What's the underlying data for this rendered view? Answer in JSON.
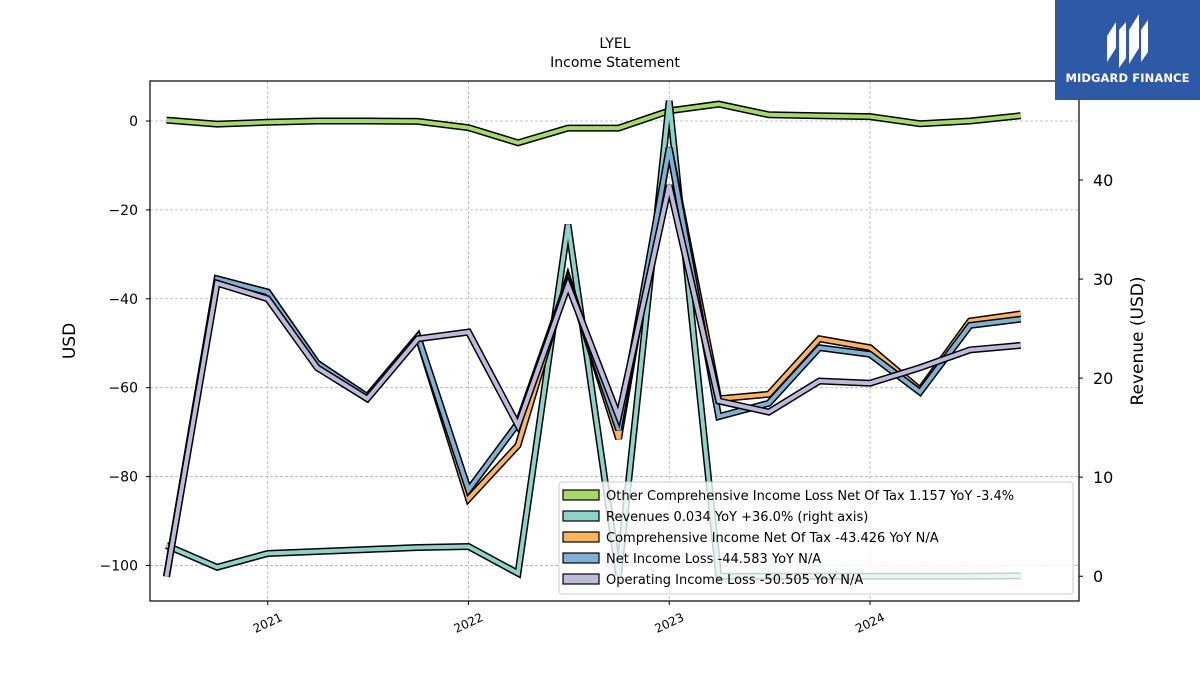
{
  "brand": {
    "name": "MIDGARD FINANCE"
  },
  "chart_data": {
    "type": "line",
    "title": "LYEL",
    "subtitle": "Income Statement",
    "ylabel": "USD",
    "ylabel_right": "Revenue (USD)",
    "x": [
      "2020-07-01",
      "2020-10-01",
      "2021-01-01",
      "2021-04-01",
      "2021-07-01",
      "2021-10-01",
      "2022-01-01",
      "2022-04-01",
      "2022-07-01",
      "2022-10-01",
      "2023-01-01",
      "2023-04-01",
      "2023-07-01",
      "2023-10-01",
      "2024-01-01",
      "2024-04-01",
      "2024-07-01",
      "2024-10-01"
    ],
    "x_ticks": [
      "2021",
      "2022",
      "2023",
      "2024"
    ],
    "ylim": [
      -108,
      9
    ],
    "y_ticks": [
      0,
      -20,
      -40,
      -60,
      -80,
      -100
    ],
    "ylim_right": [
      -2.5,
      50
    ],
    "y_ticks_right": [
      0,
      10,
      20,
      30,
      40
    ],
    "grid": true,
    "legend_position": "lower-right",
    "series": [
      {
        "name": "Other Comprehensive Income Loss Net Of Tax",
        "legend": "Other Comprehensive Income Loss Net Of Tax  1.157 YoY -3.4%",
        "color": "#a6d96a",
        "axis": "left",
        "values": [
          0.2,
          -0.7,
          -0.3,
          0,
          0,
          -0.1,
          -1.5,
          -4.9,
          -1.6,
          -1.6,
          2.3,
          3.8,
          1.4,
          1.2,
          1.0,
          -0.6,
          0,
          1.2
        ]
      },
      {
        "name": "Revenues",
        "legend": "Revenues  0.034 YoY +36.0% (right axis)",
        "color": "#8dd3c7",
        "axis": "right",
        "values": [
          3.1,
          0.9,
          2.3,
          2.5,
          2.7,
          2.9,
          3.0,
          0.3,
          35.5,
          0.1,
          48.0,
          0.0,
          0.0,
          0.0,
          0.0,
          0.0,
          0.0,
          0.034
        ]
      },
      {
        "name": "Comprehensive Income Net Of Tax",
        "legend": "Comprehensive Income Net Of Tax  -43.426 YoY N/A",
        "color": "#fdb462",
        "axis": "left",
        "values": [
          -102.5,
          -35.5,
          -38.5,
          -54.5,
          -62.0,
          -48.5,
          -85.0,
          -73.0,
          -35.5,
          -71.5,
          -6.0,
          -62.5,
          -61.5,
          -49.0,
          -51.0,
          -60.5,
          -45.0,
          -43.4
        ]
      },
      {
        "name": "Net Income Loss",
        "legend": "Net Income Loss  -44.583 YoY N/A",
        "color": "#80b1d3",
        "axis": "left",
        "values": [
          -102.5,
          -35.5,
          -38.5,
          -54.5,
          -62.0,
          -48.5,
          -83.0,
          -68.0,
          -36.0,
          -69.5,
          -6.0,
          -66.5,
          -63.5,
          -51.0,
          -52.5,
          -61.0,
          -46.0,
          -44.6
        ]
      },
      {
        "name": "Operating Income Loss",
        "legend": "Operating Income Loss  -50.505 YoY N/A",
        "color": "#bebada",
        "axis": "left",
        "values": [
          -102.5,
          -36.5,
          -40.0,
          -55.5,
          -62.5,
          -49.0,
          -47.5,
          -68.5,
          -37.0,
          -66.5,
          -14.5,
          -63.0,
          -65.5,
          -58.5,
          -59.0,
          -55.5,
          -51.5,
          -50.5
        ]
      }
    ]
  }
}
